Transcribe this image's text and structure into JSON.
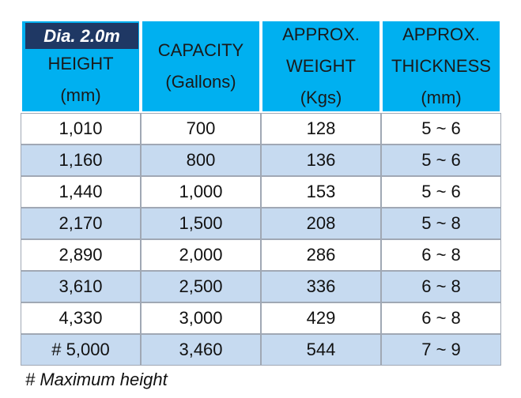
{
  "table": {
    "badge": "Dia. 2.0m",
    "header": [
      [
        "HEIGHT",
        "(mm)"
      ],
      [
        "CAPACITY",
        "(Gallons)"
      ],
      [
        "APPROX.",
        "WEIGHT",
        "(Kgs)"
      ],
      [
        "APPROX.",
        "THICKNESS",
        "(mm)"
      ]
    ],
    "rows": [
      [
        "1,010",
        "700",
        "128",
        "5 ~ 6"
      ],
      [
        "1,160",
        "800",
        "136",
        "5 ~ 6"
      ],
      [
        "1,440",
        "1,000",
        "153",
        "5 ~ 6"
      ],
      [
        "2,170",
        "1,500",
        "208",
        "5 ~ 8"
      ],
      [
        "2,890",
        "2,000",
        "286",
        "6 ~ 8"
      ],
      [
        "3,610",
        "2,500",
        "336",
        "6 ~ 8"
      ],
      [
        "4,330",
        "3,000",
        "429",
        "6 ~ 8"
      ],
      [
        "# 5,000",
        "3,460",
        "544",
        "7 ~ 9"
      ]
    ]
  },
  "footnote": "# Maximum height"
}
